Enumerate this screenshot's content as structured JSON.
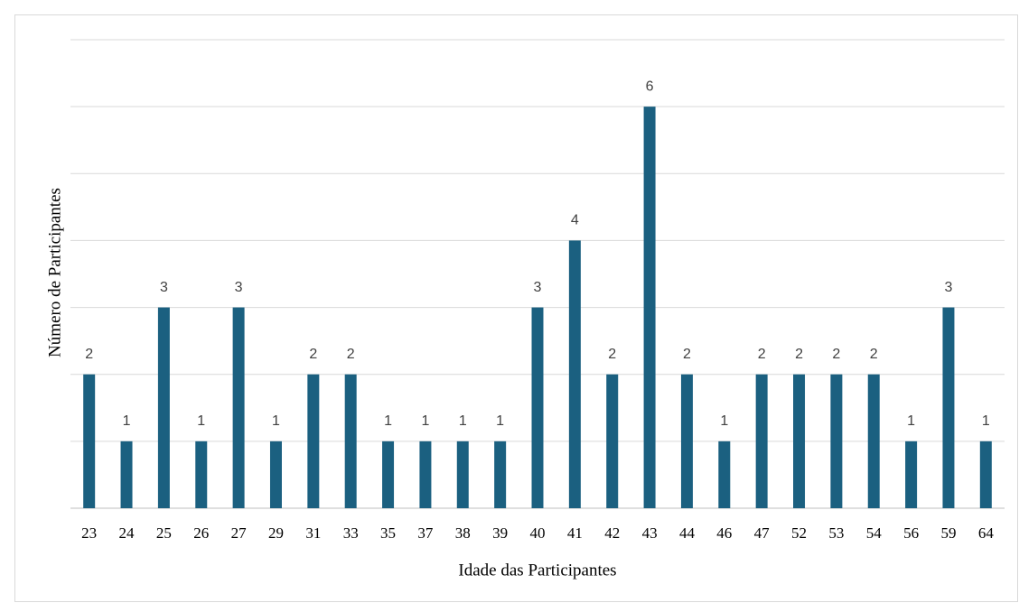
{
  "chart_data": {
    "type": "bar",
    "categories": [
      "23",
      "24",
      "25",
      "26",
      "27",
      "29",
      "31",
      "33",
      "35",
      "37",
      "38",
      "39",
      "40",
      "41",
      "42",
      "43",
      "44",
      "46",
      "47",
      "52",
      "53",
      "54",
      "56",
      "59",
      "64"
    ],
    "values": [
      2,
      1,
      3,
      1,
      3,
      1,
      2,
      2,
      1,
      1,
      1,
      1,
      3,
      4,
      2,
      6,
      2,
      1,
      2,
      2,
      2,
      2,
      1,
      3,
      1
    ],
    "color": "#1b6080",
    "xlabel": "Idade das Participantes",
    "ylabel": "Número de Participantes",
    "ylim": [
      0,
      7
    ],
    "yticks": [
      0,
      1,
      2,
      3,
      4,
      5,
      6,
      7
    ],
    "grid": true
  }
}
